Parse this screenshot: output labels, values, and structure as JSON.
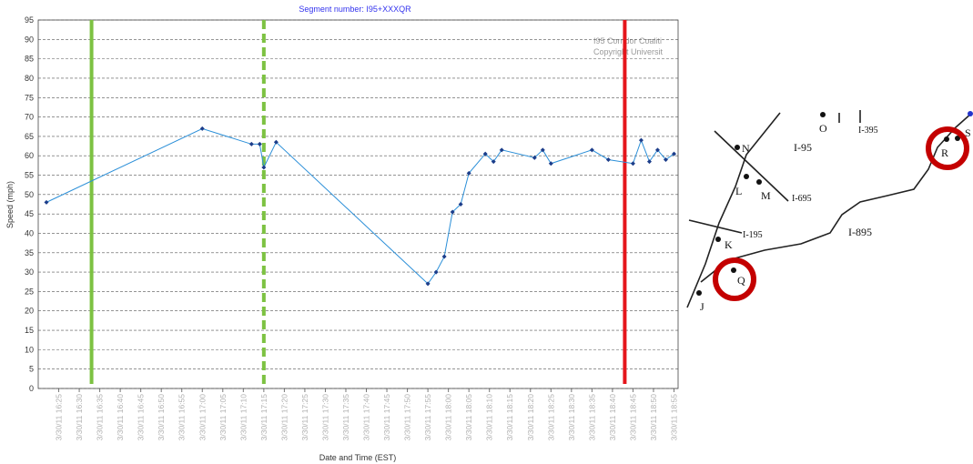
{
  "chart_data": {
    "type": "line",
    "title": "Segment number: I95+XXXQR",
    "watermark": [
      "I95 Corridor Coaliti",
      "Copyright Universit"
    ],
    "ylabel": "Speed (mph)",
    "xlabel": "Date and Time (EST)",
    "xlim": [
      "3/30/11 16:20",
      "3/30/11 18:56"
    ],
    "xticks": [
      "3/30/11 16:25",
      "3/30/11 16:30",
      "3/30/11 16:35",
      "3/30/11 16:40",
      "3/30/11 16:45",
      "3/30/11 16:50",
      "3/30/11 16:55",
      "3/30/11 17:00",
      "3/30/11 17:05",
      "3/30/11 17:10",
      "3/30/11 17:15",
      "3/30/11 17:20",
      "3/30/11 17:25",
      "3/30/11 17:30",
      "3/30/11 17:35",
      "3/30/11 17:40",
      "3/30/11 17:45",
      "3/30/11 17:50",
      "3/30/11 17:55",
      "3/30/11 18:00",
      "3/30/11 18:05",
      "3/30/11 18:10",
      "3/30/11 18:15",
      "3/30/11 18:20",
      "3/30/11 18:25",
      "3/30/11 18:30",
      "3/30/11 18:35",
      "3/30/11 18:40",
      "3/30/11 18:45",
      "3/30/11 18:50",
      "3/30/11 18:55"
    ],
    "ylim": [
      0,
      95
    ],
    "yticks": [
      0,
      5,
      10,
      15,
      20,
      25,
      30,
      35,
      40,
      45,
      50,
      55,
      60,
      65,
      70,
      75,
      80,
      85,
      90,
      95
    ],
    "grid": true,
    "x": [
      "3/30/11 16:22",
      "3/30/11 17:00",
      "3/30/11 17:12",
      "3/30/11 17:14",
      "3/30/11 17:15",
      "3/30/11 17:18",
      "3/30/11 17:55",
      "3/30/11 17:57",
      "3/30/11 17:59",
      "3/30/11 18:01",
      "3/30/11 18:03",
      "3/30/11 18:05",
      "3/30/11 18:09",
      "3/30/11 18:11",
      "3/30/11 18:13",
      "3/30/11 18:21",
      "3/30/11 18:23",
      "3/30/11 18:25",
      "3/30/11 18:35",
      "3/30/11 18:39",
      "3/30/11 18:45",
      "3/30/11 18:47",
      "3/30/11 18:49",
      "3/30/11 18:51",
      "3/30/11 18:53",
      "3/30/11 18:55"
    ],
    "series": [
      {
        "color": "#2b8fd8",
        "marker_color": "#1c3d8a",
        "values": [
          48,
          67,
          63,
          63,
          57,
          63.5,
          27,
          30,
          34,
          45.5,
          47.5,
          55.5,
          60.5,
          58.5,
          61.5,
          59.5,
          61.5,
          58,
          61.5,
          59,
          58,
          64,
          58.5,
          61.5,
          59,
          60.5
        ]
      }
    ],
    "markers": [
      {
        "x": "3/30/11 16:33",
        "color": "#7dc242",
        "style": "solid"
      },
      {
        "x": "3/30/11 17:15",
        "color": "#7dc242",
        "style": "dashed"
      },
      {
        "x": "3/30/11 18:43",
        "color": "#e5161c",
        "style": "solid"
      }
    ]
  },
  "map": {
    "labels": [
      "N",
      "L",
      "M",
      "I-95",
      "I-695",
      "O",
      "I-395",
      "R",
      "S",
      "I-195",
      "K",
      "I-895",
      "Q",
      "J"
    ]
  }
}
